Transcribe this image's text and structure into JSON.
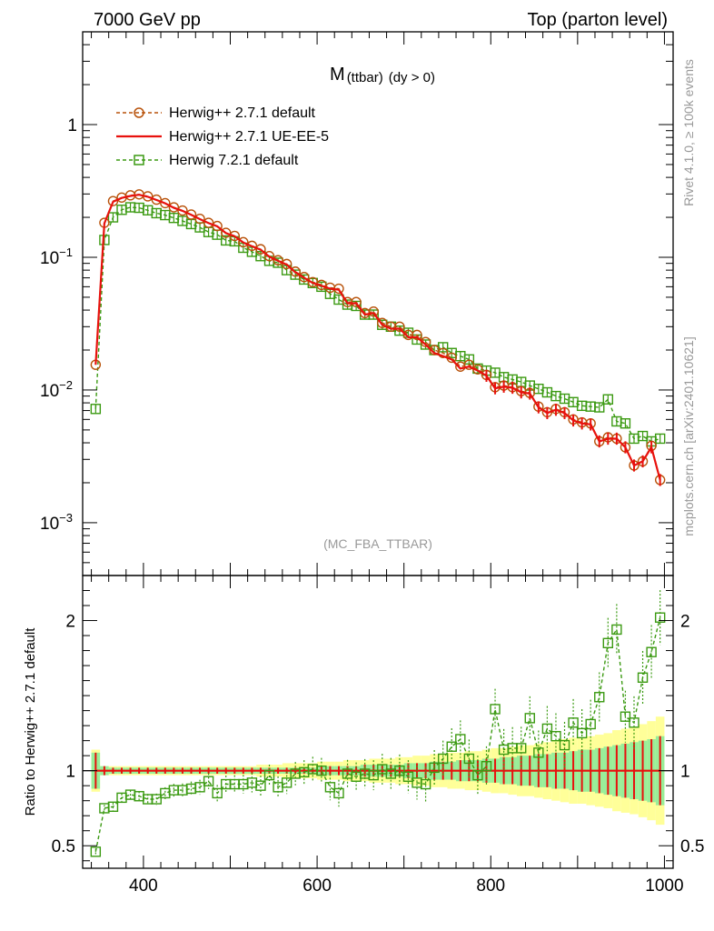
{
  "header": {
    "left": "7000 GeV pp",
    "right": "Top (parton level)"
  },
  "side": {
    "rivet": "Rivet 4.1.0, ≥ 100k events",
    "mcplots": "mcplots.cern.ch [arXiv:2401.10621]"
  },
  "colors": {
    "herwig_default": "#b8520a",
    "ue_ee5": "#e8110d",
    "herwig72": "#3b9a12",
    "band_outer": "#ffff99",
    "band_inner": "#99ee99"
  },
  "chart_data": [
    {
      "type": "line",
      "title": "M",
      "title_sub": "(ttbar)",
      "title_suffix": "(dy > 0)",
      "annotation": "(MC_FBA_TTBAR)",
      "xlabel": "",
      "ylabel": "",
      "yscale": "log",
      "xlim": [
        330,
        1010
      ],
      "ylim": [
        0.0004,
        5
      ],
      "y_ticks": [
        {
          "value": 1,
          "label": "1"
        },
        {
          "value": 0.1,
          "label": "10",
          "exp": "−1"
        },
        {
          "value": 0.01,
          "label": "10",
          "exp": "−2"
        },
        {
          "value": 0.001,
          "label": "10",
          "exp": "−3"
        }
      ],
      "legend": [
        {
          "name": "Herwig++ 2.7.1 default",
          "style": "circle-dashed"
        },
        {
          "name": "Herwig++ 2.7.1 UE-EE-5",
          "style": "solid"
        },
        {
          "name": "Herwig 7.2.1 default",
          "style": "square-dashed"
        }
      ],
      "x": [
        345,
        355,
        365,
        375,
        385,
        395,
        405,
        415,
        425,
        435,
        445,
        455,
        465,
        475,
        485,
        495,
        505,
        515,
        525,
        535,
        545,
        555,
        565,
        575,
        585,
        595,
        605,
        615,
        625,
        635,
        645,
        655,
        665,
        675,
        685,
        695,
        705,
        715,
        725,
        735,
        745,
        755,
        765,
        775,
        785,
        795,
        805,
        815,
        825,
        835,
        845,
        855,
        865,
        875,
        885,
        895,
        905,
        915,
        925,
        935,
        945,
        955,
        965,
        975,
        985,
        995
      ],
      "series": [
        {
          "name": "Herwig++ 2.7.1 default",
          "values": [
            0.0155,
            0.182,
            0.265,
            0.282,
            0.293,
            0.298,
            0.288,
            0.272,
            0.256,
            0.238,
            0.225,
            0.21,
            0.195,
            0.182,
            0.172,
            0.153,
            0.145,
            0.13,
            0.122,
            0.115,
            0.102,
            0.095,
            0.089,
            0.078,
            0.071,
            0.065,
            0.062,
            0.059,
            0.058,
            0.046,
            0.046,
            0.038,
            0.039,
            0.032,
            0.03,
            0.03,
            0.026,
            0.026,
            0.023,
            0.02,
            0.019,
            0.0175,
            0.015,
            0.0155,
            0.0143,
            0.013,
            0.0105,
            0.0108,
            0.0105,
            0.0098,
            0.0095,
            0.0075,
            0.0068,
            0.0072,
            0.0068,
            0.006,
            0.0057,
            0.0056,
            0.0041,
            0.0044,
            0.0043,
            0.0037,
            0.0027,
            0.0029,
            0.0038,
            0.0021
          ]
        },
        {
          "name": "Herwig++ 2.7.1 UE-EE-5",
          "values": [
            0.0155,
            0.18,
            0.262,
            0.28,
            0.29,
            0.296,
            0.286,
            0.27,
            0.255,
            0.236,
            0.224,
            0.209,
            0.194,
            0.181,
            0.171,
            0.152,
            0.144,
            0.129,
            0.121,
            0.114,
            0.101,
            0.094,
            0.088,
            0.077,
            0.07,
            0.064,
            0.061,
            0.058,
            0.057,
            0.045,
            0.045,
            0.037,
            0.038,
            0.031,
            0.029,
            0.029,
            0.025,
            0.025,
            0.022,
            0.019,
            0.018,
            0.017,
            0.0145,
            0.015,
            0.014,
            0.0128,
            0.0103,
            0.0106,
            0.0104,
            0.0096,
            0.0094,
            0.0074,
            0.0067,
            0.0071,
            0.0067,
            0.0059,
            0.0056,
            0.0055,
            0.0041,
            0.0043,
            0.0043,
            0.0037,
            0.0027,
            0.0029,
            0.0037,
            0.0021
          ]
        },
        {
          "name": "Herwig 7.2.1 default",
          "values": [
            0.0072,
            0.135,
            0.2,
            0.228,
            0.238,
            0.236,
            0.226,
            0.215,
            0.208,
            0.198,
            0.188,
            0.178,
            0.168,
            0.155,
            0.148,
            0.134,
            0.132,
            0.118,
            0.11,
            0.102,
            0.094,
            0.091,
            0.08,
            0.074,
            0.068,
            0.064,
            0.06,
            0.053,
            0.048,
            0.044,
            0.043,
            0.037,
            0.037,
            0.031,
            0.03,
            0.028,
            0.027,
            0.024,
            0.022,
            0.02,
            0.021,
            0.019,
            0.018,
            0.017,
            0.0145,
            0.014,
            0.0135,
            0.0125,
            0.012,
            0.0115,
            0.0108,
            0.0102,
            0.0096,
            0.009,
            0.0086,
            0.0081,
            0.0076,
            0.0075,
            0.0074,
            0.0085,
            0.0058,
            0.0056,
            0.0043,
            0.0045,
            0.0041,
            0.0043
          ]
        }
      ]
    },
    {
      "type": "line",
      "title": "",
      "xlabel": "",
      "ylabel": "Ratio to Herwig++ 2.7.1 default",
      "yscale": "linear",
      "xlim": [
        330,
        1010
      ],
      "ylim": [
        0.35,
        2.3
      ],
      "x_ticks": [
        400,
        600,
        800,
        1000
      ],
      "y_ticks": [
        0.5,
        1,
        2
      ],
      "x": [
        345,
        355,
        365,
        375,
        385,
        395,
        405,
        415,
        425,
        435,
        445,
        455,
        465,
        475,
        485,
        495,
        505,
        515,
        525,
        535,
        545,
        555,
        565,
        575,
        585,
        595,
        605,
        615,
        625,
        635,
        645,
        655,
        665,
        675,
        685,
        695,
        705,
        715,
        725,
        735,
        745,
        755,
        765,
        775,
        785,
        795,
        805,
        815,
        825,
        835,
        845,
        855,
        865,
        875,
        885,
        895,
        905,
        915,
        925,
        935,
        945,
        955,
        965,
        975,
        985,
        995
      ],
      "band_inner": [
        0.12,
        0.03,
        0.02,
        0.02,
        0.02,
        0.02,
        0.02,
        0.02,
        0.02,
        0.02,
        0.02,
        0.02,
        0.02,
        0.02,
        0.02,
        0.02,
        0.02,
        0.02,
        0.02,
        0.02,
        0.02,
        0.02,
        0.02,
        0.02,
        0.02,
        0.02,
        0.03,
        0.03,
        0.03,
        0.03,
        0.03,
        0.04,
        0.04,
        0.04,
        0.04,
        0.04,
        0.05,
        0.05,
        0.05,
        0.06,
        0.06,
        0.06,
        0.07,
        0.07,
        0.07,
        0.08,
        0.08,
        0.09,
        0.09,
        0.1,
        0.1,
        0.11,
        0.11,
        0.12,
        0.12,
        0.13,
        0.14,
        0.14,
        0.15,
        0.16,
        0.17,
        0.18,
        0.19,
        0.2,
        0.21,
        0.23
      ],
      "band_outer": [
        0.14,
        0.03,
        0.03,
        0.03,
        0.03,
        0.03,
        0.03,
        0.03,
        0.03,
        0.03,
        0.03,
        0.03,
        0.03,
        0.03,
        0.03,
        0.03,
        0.03,
        0.03,
        0.03,
        0.04,
        0.04,
        0.04,
        0.05,
        0.05,
        0.05,
        0.05,
        0.06,
        0.06,
        0.06,
        0.07,
        0.07,
        0.07,
        0.08,
        0.08,
        0.08,
        0.09,
        0.09,
        0.1,
        0.1,
        0.11,
        0.11,
        0.12,
        0.12,
        0.13,
        0.13,
        0.14,
        0.15,
        0.15,
        0.16,
        0.17,
        0.17,
        0.18,
        0.19,
        0.2,
        0.21,
        0.22,
        0.22,
        0.23,
        0.24,
        0.25,
        0.27,
        0.28,
        0.29,
        0.31,
        0.33,
        0.36
      ],
      "series": [
        {
          "name": "Herwig++ 2.7.1 UE-EE-5",
          "values": [
            1,
            1,
            1,
            1,
            1,
            1,
            1,
            1,
            1,
            1,
            1,
            1,
            1,
            1,
            1,
            1,
            1,
            1,
            1,
            1,
            1,
            1,
            1,
            1,
            1,
            1,
            1,
            1,
            1,
            1,
            1,
            1,
            1,
            1,
            1,
            1,
            1,
            1,
            1,
            1,
            1,
            1,
            1,
            1,
            1,
            1,
            1,
            1,
            1,
            1,
            1,
            1,
            1,
            1,
            1,
            1,
            1,
            1,
            1,
            1,
            1,
            1,
            1,
            1,
            1,
            1
          ]
        },
        {
          "name": "Herwig 7.2.1 default",
          "values": [
            0.46,
            0.75,
            0.76,
            0.82,
            0.84,
            0.83,
            0.81,
            0.81,
            0.85,
            0.87,
            0.87,
            0.88,
            0.89,
            0.93,
            0.85,
            0.91,
            0.91,
            0.91,
            0.92,
            0.9,
            0.97,
            0.89,
            0.92,
            0.98,
            0.99,
            1.01,
            1.0,
            0.89,
            0.85,
            0.98,
            0.96,
            0.98,
            0.97,
            1.01,
            0.98,
            1.0,
            0.96,
            0.92,
            0.91,
            1.02,
            1.08,
            1.16,
            1.21,
            1.08,
            0.97,
            1.03,
            1.41,
            1.14,
            1.15,
            1.15,
            1.35,
            1.12,
            1.28,
            1.23,
            1.17,
            1.32,
            1.25,
            1.31,
            1.49,
            1.85,
            1.94,
            1.36,
            1.32,
            1.62,
            1.79,
            2.02
          ]
        }
      ]
    }
  ]
}
